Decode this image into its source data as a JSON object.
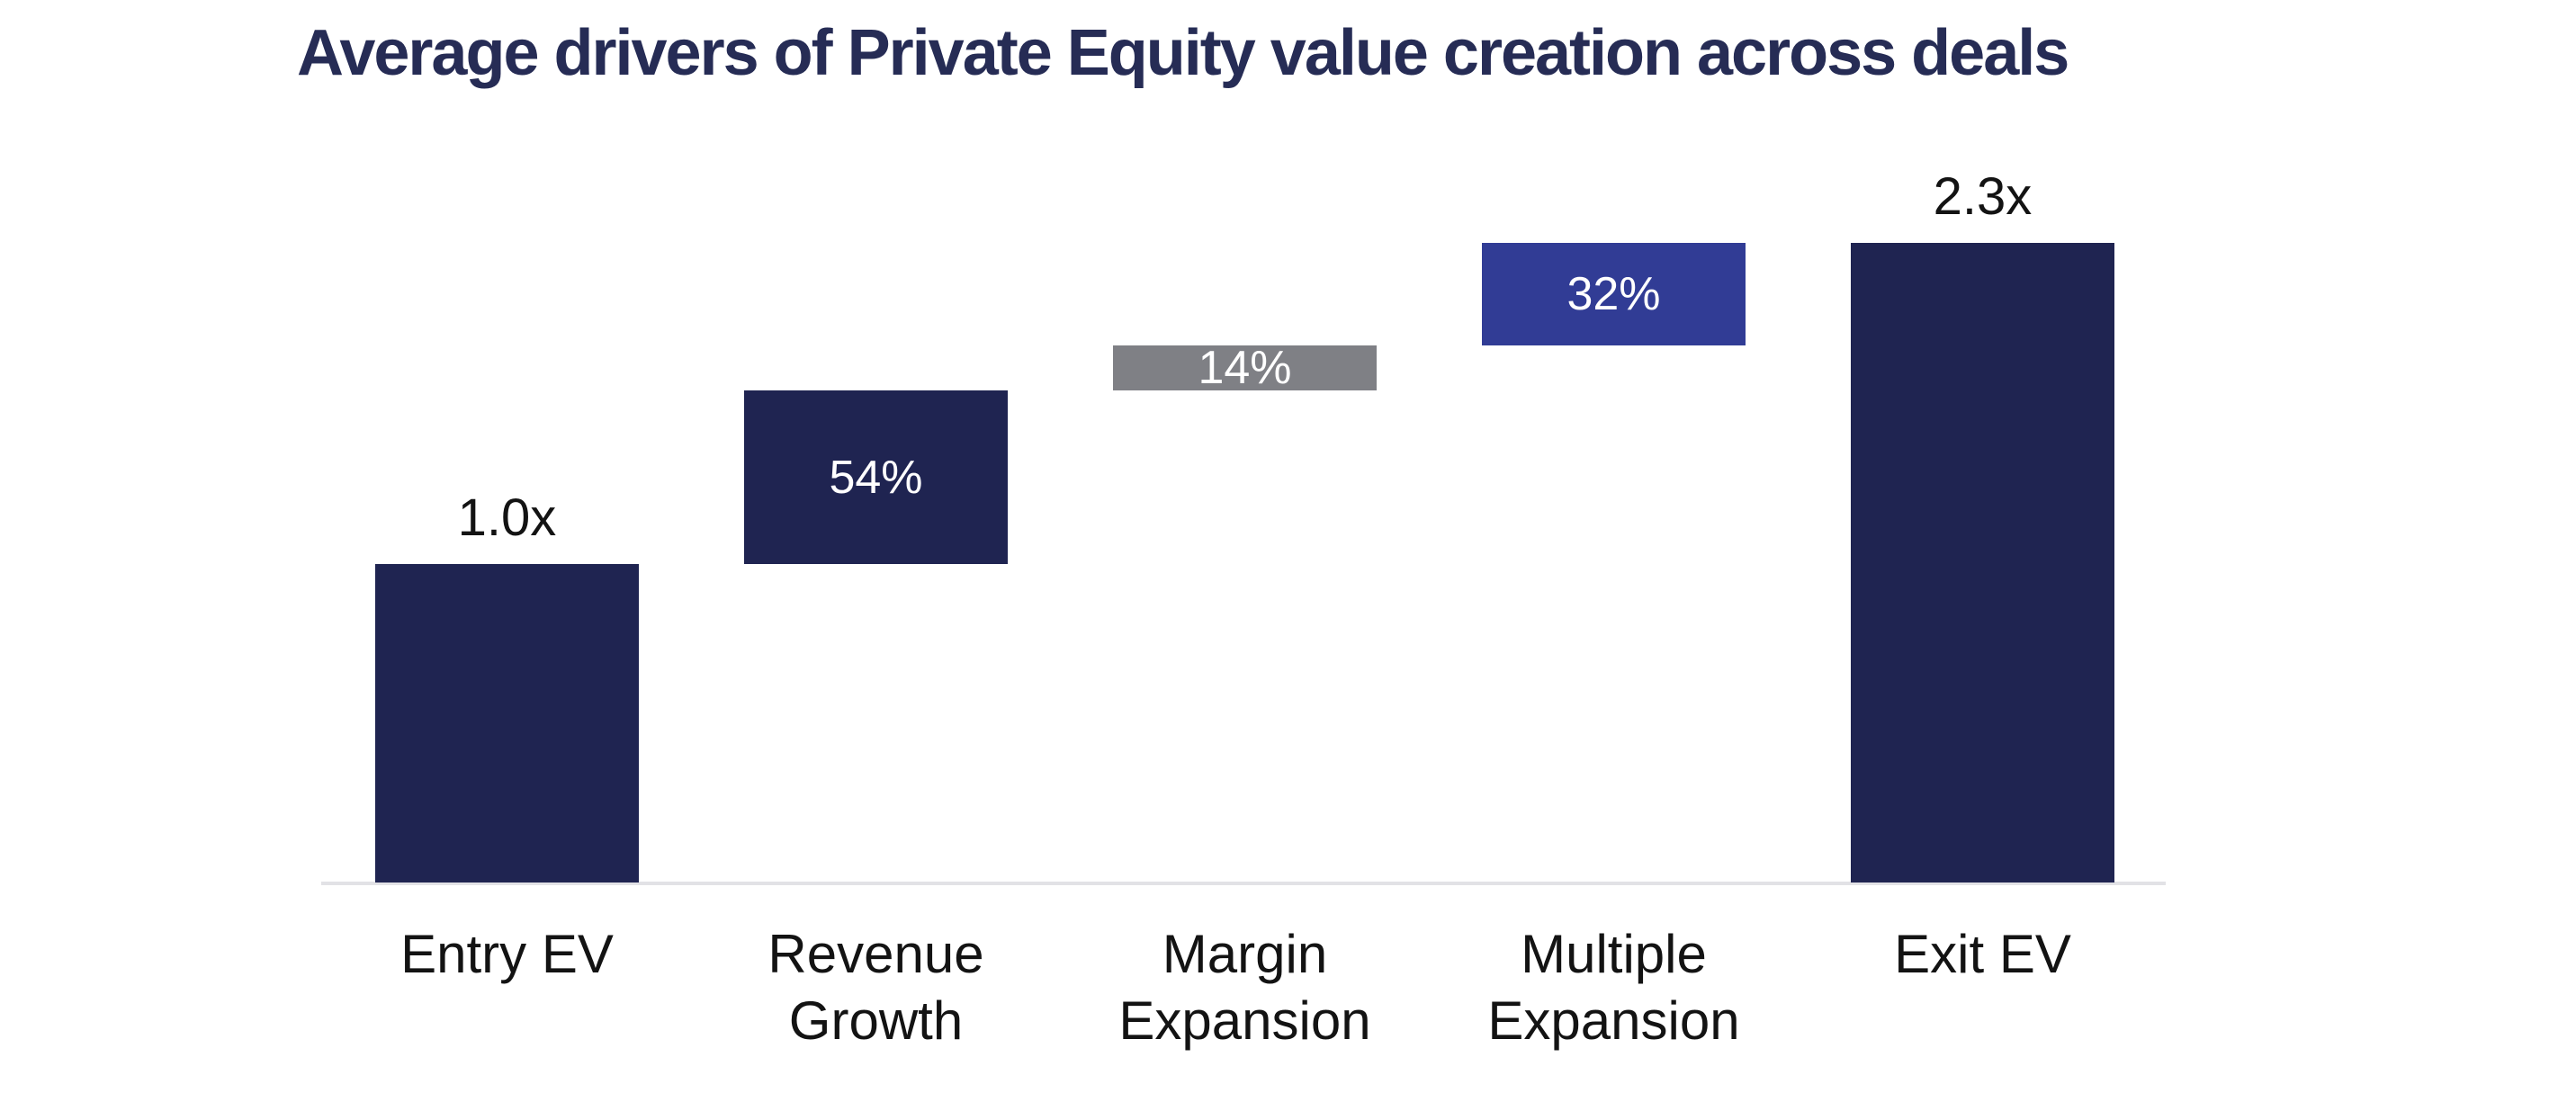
{
  "title": "Average drivers of Private Equity value creation across deals",
  "colors": {
    "navy": "#1F2451",
    "blue": "#313C95",
    "gray": "#7F8085",
    "axis_line": "#E2E2E6",
    "title_text": "#262C55",
    "outside_label_text": "#131313",
    "inside_label_text": "#FFFFFF",
    "background": "#FFFFFF"
  },
  "chart_data": {
    "type": "bar",
    "subtype": "waterfall",
    "title": "Average drivers of Private Equity value creation across deals",
    "categories": [
      "Entry EV",
      "Revenue Growth",
      "Margin Expansion",
      "Multiple Expansion",
      "Exit EV"
    ],
    "gridlines": false,
    "legend": null,
    "bars": [
      {
        "category": "Entry EV",
        "label_lines": [
          "Entry EV"
        ],
        "role": "base",
        "value": 1.0,
        "value_label": "1.0x",
        "label_position": "above",
        "color_key": "navy"
      },
      {
        "category": "Revenue Growth",
        "label_lines": [
          "Revenue",
          "Growth"
        ],
        "role": "increment",
        "percent_of_value_creation": 54,
        "value_label": "54%",
        "label_position": "inside",
        "color_key": "navy"
      },
      {
        "category": "Margin Expansion",
        "label_lines": [
          "Margin",
          "Expansion"
        ],
        "role": "increment",
        "percent_of_value_creation": 14,
        "value_label": "14%",
        "label_position": "inside",
        "color_key": "gray"
      },
      {
        "category": "Multiple Expansion",
        "label_lines": [
          "Multiple",
          "Expansion"
        ],
        "role": "increment",
        "percent_of_value_creation": 32,
        "value_label": "32%",
        "label_position": "inside",
        "color_key": "blue"
      },
      {
        "category": "Exit EV",
        "label_lines": [
          "Exit EV"
        ],
        "role": "total",
        "value": 2.3,
        "value_label": "2.3x",
        "label_position": "above",
        "color_key": "navy"
      }
    ]
  }
}
